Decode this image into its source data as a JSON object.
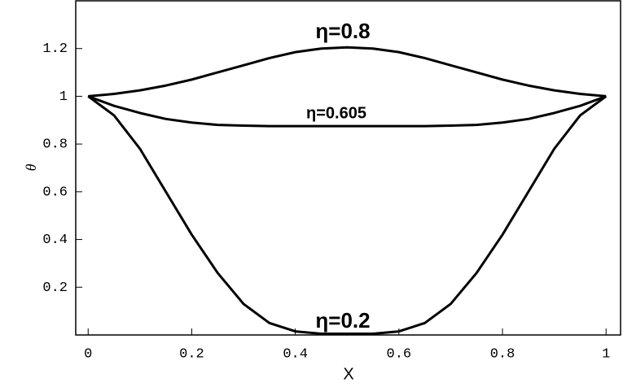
{
  "chart_data": {
    "type": "line",
    "x_label": "X",
    "y_label": "θ",
    "x": [
      0,
      0.05,
      0.1,
      0.15,
      0.2,
      0.25,
      0.3,
      0.35,
      0.4,
      0.45,
      0.5,
      0.55,
      0.6,
      0.65,
      0.7,
      0.75,
      0.8,
      0.85,
      0.9,
      0.95,
      1
    ],
    "series": [
      {
        "name": "η=0.8",
        "color": "#000000",
        "values": [
          1,
          1.01,
          1.025,
          1.045,
          1.07,
          1.1,
          1.13,
          1.16,
          1.185,
          1.2,
          1.205,
          1.2,
          1.185,
          1.16,
          1.13,
          1.1,
          1.07,
          1.045,
          1.025,
          1.01,
          1
        ]
      },
      {
        "name": "η=0.605",
        "color": "#000000",
        "values": [
          1,
          0.96,
          0.93,
          0.905,
          0.89,
          0.88,
          0.877,
          0.875,
          0.875,
          0.875,
          0.875,
          0.875,
          0.875,
          0.875,
          0.877,
          0.88,
          0.89,
          0.905,
          0.93,
          0.96,
          1
        ]
      },
      {
        "name": "η=0.2",
        "color": "#000000",
        "values": [
          1,
          0.92,
          0.78,
          0.6,
          0.42,
          0.26,
          0.13,
          0.05,
          0.015,
          0.005,
          0.005,
          0.005,
          0.015,
          0.05,
          0.13,
          0.26,
          0.42,
          0.6,
          0.78,
          0.92,
          1
        ]
      }
    ],
    "xlim": [
      -0.024,
      1.028
    ],
    "ylim": [
      0,
      1.4
    ],
    "xticks": [
      0,
      0.2,
      0.4,
      0.6,
      0.8,
      1
    ],
    "yticks": [
      0.2,
      0.4,
      0.6,
      0.8,
      1,
      1.2
    ]
  }
}
